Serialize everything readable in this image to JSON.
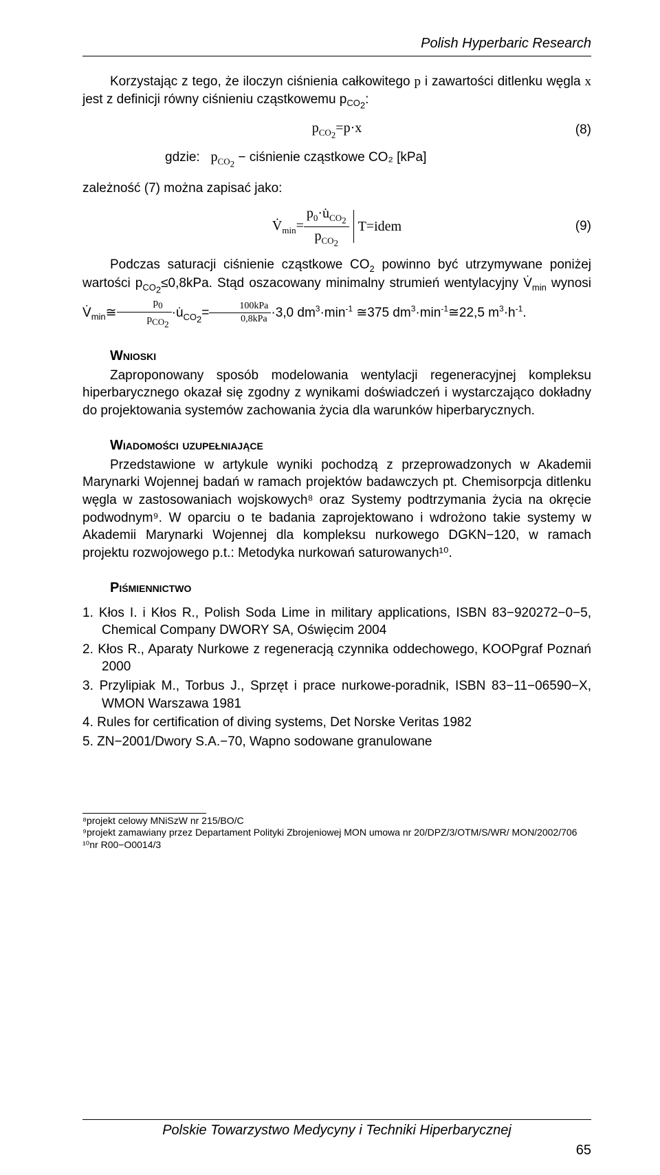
{
  "header": {
    "journal": "Polish Hyperbaric Research"
  },
  "p1": "Korzystając z tego, że iloczyn ciśnienia całkowitego p i zawartości ditlenku węgla x jest z definicji równy ciśnieniu cząstkowemu p_{CO2}:",
  "eq8": {
    "lhs": "p_{CO₂}",
    "rhs": "= p·x",
    "num": "(8)"
  },
  "where_label": "gdzie:",
  "where_sym": "p_{CO₂}",
  "where_def": " − ciśnienie cząstkowe CO₂ [kPa]",
  "p2": "zależność (7) można zapisać jako:",
  "eq9": {
    "num_top": "p₀·u̇_{CO₂}",
    "num_bot": "p_{CO₂}",
    "lhs": "V̇_{min} =",
    "tail": "T=idem",
    "num": "(9)"
  },
  "p3a": "Podczas saturacji ciśnienie cząstkowe CO₂ powinno być utrzymywane poniżej wartości p",
  "p3b": "≤0,8kPa. Stąd oszacowany minimalny strumień wentylacyjny V̇",
  "p3c": "wynosi V̇",
  "p3d": "≅",
  "frac1_top": "p₀",
  "frac1_bot": "p_{CO₂}",
  "p3e": "·u̇",
  "p3f": "=",
  "frac2_top": "100kPa",
  "frac2_bot": "0,8kPa",
  "p3g": "·3,0 dm³·min⁻¹ ≅375 dm³·min⁻¹≅22,5 m³·h⁻¹.",
  "sec1": "Wnioski",
  "p4": "Zaproponowany sposób modelowania wentylacji regeneracyjnej kompleksu hiperbarycznego okazał się zgodny z wynikami doświadczeń i wystarczająco dokładny do projektowania systemów zachowania życia dla warunków hiperbarycznych.",
  "sec2": "Wiadomości uzupełniające",
  "p5": "Przedstawione w artykule wyniki pochodzą z przeprowadzonych w Akademii Marynarki Wojennej badań w ramach projektów badawczych pt. Chemisorpcja ditlenku węgla w zastosowaniach wojskowych⁸ oraz Systemy podtrzymania życia na okręcie podwodnym⁹. W oparciu o te badania zaprojektowano i wdrożono takie systemy w Akademii Marynarki Wojennej dla kompleksu nurkowego DGKN−120, w ramach projektu rozwojowego p.t.: Metodyka nurkowań saturowanych¹⁰.",
  "sec3": "Piśmiennictwo",
  "refs": [
    "1.  Kłos I. i Kłos R., Polish Soda Lime in military applications, ISBN 83−920272−0−5, Chemical Company DWORY SA, Oświęcim 2004",
    "2.  Kłos R., Aparaty Nurkowe z regeneracją czynnika oddechowego, KOOPgraf Poznań 2000",
    "3.  Przylipiak M., Torbus J., Sprzęt i prace nurkowe-poradnik, ISBN 83−11−06590−X, WMON Warszawa 1981",
    "4.  Rules for certification of diving systems, Det Norske Veritas 1982",
    "5.  ZN−2001/Dwory S.A.−70, Wapno sodowane granulowane"
  ],
  "footnotes": {
    "f8": "⁸projekt celowy MNiSzW nr 215/BO/C",
    "f9": "⁹projekt zamawiany przez Departament Polityki Zbrojeniowej MON umowa nr 20/DPZ/3/OTM/S/WR/ MON/2002/706",
    "f10": "¹⁰nr R00−O0014/3"
  },
  "footer": {
    "org": "Polskie Towarzystwo Medycyny i Techniki Hiperbarycznej",
    "page": "65"
  }
}
